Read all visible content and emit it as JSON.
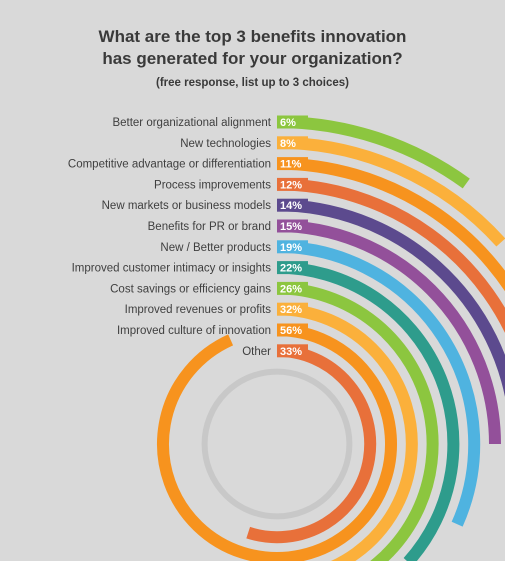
{
  "title_line1": "What are the top 3 benefits innovation",
  "title_line2": "has generated for your organization?",
  "subtitle": "(free response, list up to 3 choices)",
  "chart_data": {
    "type": "bar",
    "title": "What are the top 3 benefits innovation has generated for your organization?",
    "subtitle": "(free response, list up to 3 choices)",
    "categories": [
      "Better organizational alignment",
      "New technologies",
      "Competitive advantage or differentiation",
      "Process improvements",
      "New markets or business models",
      "Benefits for PR or brand",
      "New / Better products",
      "Improved customer intimacy or insights",
      "Cost savings or efficiency gains",
      "Improved revenues or profits",
      "Improved culture of innovation",
      "Other"
    ],
    "values": [
      6,
      8,
      11,
      12,
      14,
      15,
      19,
      22,
      26,
      32,
      56,
      33
    ],
    "labels": [
      "6%",
      "8%",
      "11%",
      "12%",
      "14%",
      "15%",
      "19%",
      "22%",
      "26%",
      "32%",
      "56%",
      "33%"
    ],
    "colors": [
      "#8cc63f",
      "#fbb03b",
      "#f7931e",
      "#e8703a",
      "#5c4a8e",
      "#93509a",
      "#4fb3e0",
      "#2e9c8c",
      "#8cc63f",
      "#fbb03b",
      "#f7931e",
      "#e8703a"
    ],
    "track_color": "#c8c8c8"
  }
}
